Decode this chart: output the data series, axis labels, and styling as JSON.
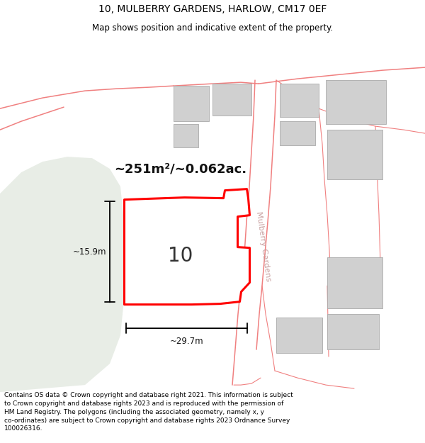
{
  "title": "10, MULBERRY GARDENS, HARLOW, CM17 0EF",
  "subtitle": "Map shows position and indicative extent of the property.",
  "footer": "Contains OS data © Crown copyright and database right 2021. This information is subject\nto Crown copyright and database rights 2023 and is reproduced with the permission of\nHM Land Registry. The polygons (including the associated geometry, namely x, y\nco-ordinates) are subject to Crown copyright and database rights 2023 Ordnance Survey\n100026316.",
  "area_label": "~251m²/~0.062ac.",
  "plot_number": "10",
  "width_label": "~29.7m",
  "height_label": "~15.9m",
  "road_label": "Mulberry Gardens",
  "map_bg": "#ffffff",
  "green_area_color": "#e8ede6",
  "building_color": "#d0d0d0",
  "highlight_color": "#ff0000",
  "highlight_fill": "#ffffff",
  "road_line_color": "#f08080",
  "title_fontsize": 10,
  "subtitle_fontsize": 8.5,
  "footer_fontsize": 6.5
}
